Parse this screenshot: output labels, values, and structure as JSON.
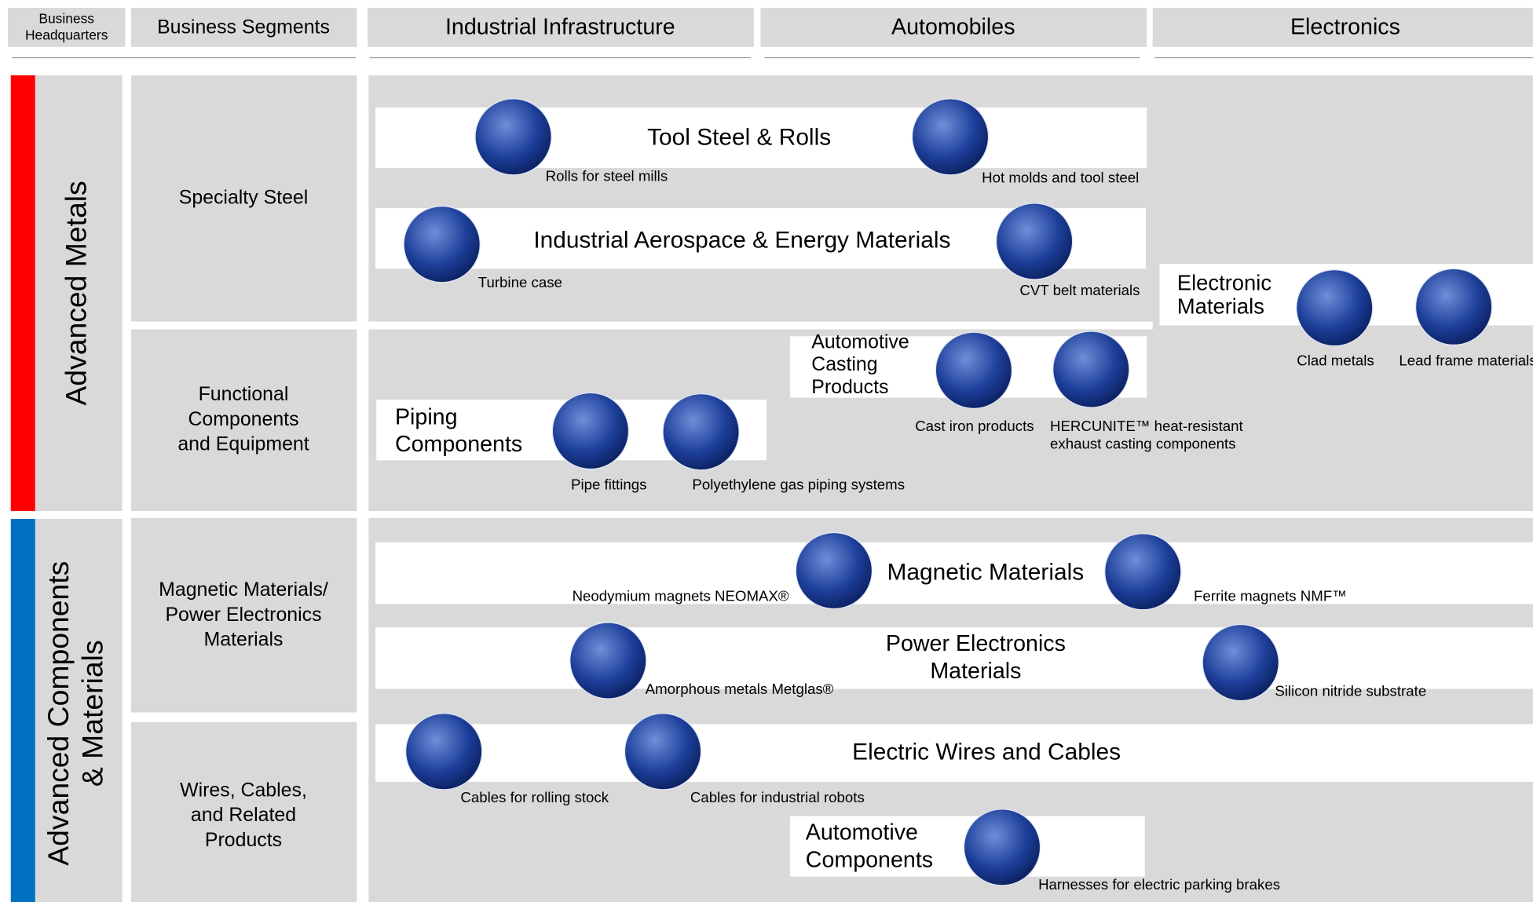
{
  "header": {
    "headquarters": [
      "Business",
      "Headquarters"
    ],
    "segments": "Business Segments",
    "markets": [
      "Industrial Infrastructure",
      "Automobiles",
      "Electronics"
    ]
  },
  "headquarters": [
    {
      "lines": [
        "Advanced Metals"
      ]
    },
    {
      "lines": [
        "Advanced Components",
        "& Materials"
      ]
    }
  ],
  "segments": [
    {
      "lines": [
        "Specialty Steel"
      ]
    },
    {
      "lines": [
        "Functional",
        "Components",
        "and Equipment"
      ]
    },
    {
      "lines": [
        "Magnetic Materials/",
        "Power Electronics",
        "Materials"
      ]
    },
    {
      "lines": [
        "Wires, Cables,",
        "and Related",
        "Products"
      ]
    }
  ],
  "groups": [
    {
      "title": [
        "Tool Steel & Rolls"
      ],
      "products": [
        {
          "caption": [
            "Rolls for steel mills"
          ]
        },
        {
          "caption": [
            "Hot molds and tool steel"
          ]
        }
      ]
    },
    {
      "title": [
        "Industrial Aerospace & Energy Materials"
      ],
      "products": [
        {
          "caption": [
            "Turbine case"
          ]
        },
        {
          "caption": [
            "CVT belt materials"
          ]
        }
      ]
    },
    {
      "title": [
        "Electronic",
        "Materials"
      ],
      "products": [
        {
          "caption": [
            "Clad metals"
          ]
        },
        {
          "caption": [
            "Lead frame materials"
          ]
        }
      ]
    },
    {
      "title": [
        "Automotive",
        "Casting",
        "Products"
      ],
      "products": [
        {
          "caption": [
            "Cast iron products"
          ]
        },
        {
          "caption": [
            "HERCUNITE™ heat-resistant",
            "exhaust casting components"
          ]
        }
      ]
    },
    {
      "title": [
        "Piping",
        "Components"
      ],
      "products": [
        {
          "caption": [
            "Pipe fittings"
          ]
        },
        {
          "caption": [
            "Polyethylene gas piping systems"
          ]
        }
      ]
    },
    {
      "title": [
        "Magnetic Materials"
      ],
      "products": [
        {
          "caption": [
            "Neodymium magnets NEOMAX®"
          ]
        },
        {
          "caption": [
            "Ferrite magnets NMF™"
          ]
        }
      ]
    },
    {
      "title": [
        "Power Electronics",
        "Materials"
      ],
      "products": [
        {
          "caption": [
            "Amorphous metals Metglas®"
          ]
        },
        {
          "caption": [
            "Silicon nitride substrate"
          ]
        }
      ]
    },
    {
      "title": [
        "Electric Wires and Cables"
      ],
      "products": [
        {
          "caption": [
            "Cables for rolling stock"
          ]
        },
        {
          "caption": [
            "Cables for industrial robots"
          ]
        }
      ]
    },
    {
      "title": [
        "Automotive",
        "Components"
      ],
      "products": [
        {
          "caption": [
            "Harnesses for electric parking brakes"
          ]
        }
      ]
    }
  ]
}
